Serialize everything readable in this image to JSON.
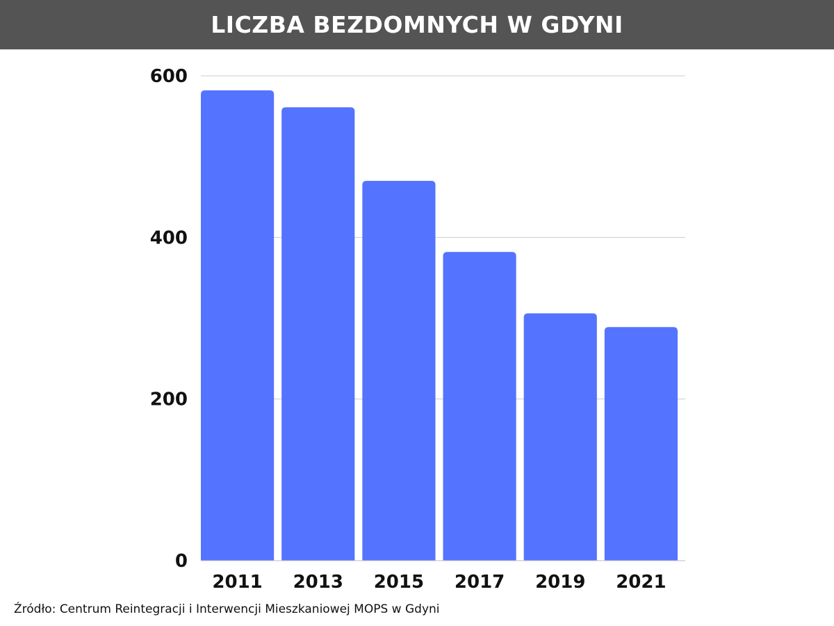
{
  "header": {
    "title": "LICZBA BEZDOMNYCH W GDYNI"
  },
  "footer": {
    "source": "Źródło: Centrum Reintegracji i Interwencji Mieszkaniowej MOPS w Gdyni"
  },
  "colors": {
    "bar": "#5473ff",
    "header_bg": "#545454",
    "grid": "#cccccc",
    "axis": "#bbbbbb"
  },
  "chart_data": {
    "type": "bar",
    "title": "LICZBA BEZDOMNYCH W GDYNI",
    "categories": [
      "2011",
      "2013",
      "2015",
      "2017",
      "2019",
      "2021"
    ],
    "values": [
      582,
      561,
      470,
      382,
      306,
      289
    ],
    "xlabel": "",
    "ylabel": "",
    "ylim": [
      0,
      600
    ],
    "yticks": [
      0,
      200,
      400,
      600
    ],
    "grid": true,
    "legend": "none"
  }
}
